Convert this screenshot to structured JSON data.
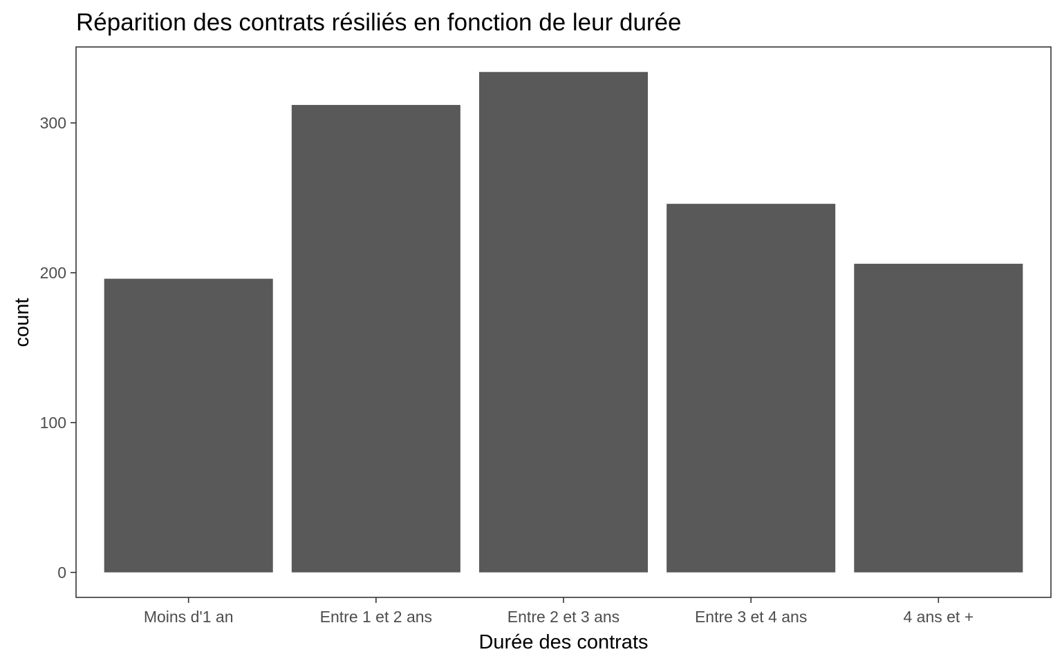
{
  "chart_data": {
    "type": "bar",
    "title": "Réparition des contrats résiliés en fonction de leur durée",
    "xlabel": "Durée des contrats",
    "ylabel": "count",
    "categories": [
      "Moins d'1 an",
      "Entre 1 et 2 ans",
      "Entre 2 et 3 ans",
      "Entre 3 et 4 ans",
      "4 ans et +"
    ],
    "values": [
      196,
      312,
      334,
      246,
      206
    ],
    "ylim": [
      -16.7,
      350.7
    ],
    "yticks": [
      0,
      100,
      200,
      300
    ],
    "grid": false,
    "legend": "none",
    "bar_color": "#595959",
    "panel_border_color": "#333333",
    "tick_label_color": "#4d4d4d"
  }
}
